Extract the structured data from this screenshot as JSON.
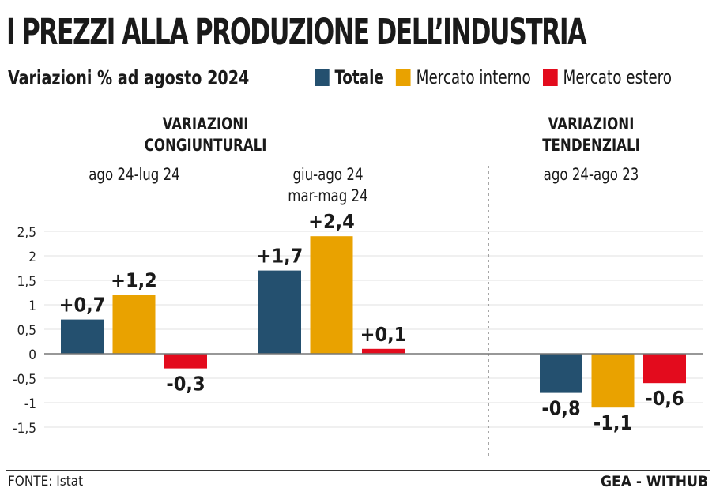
{
  "title": "I PREZZI ALLA PRODUZIONE DELL’INDUSTRIA",
  "subtitle": "Variazioni % ad agosto 2024",
  "source": "FONTE: Istat",
  "brand": "GEA - WITHUB",
  "colors": {
    "totale": "#24506f",
    "interno": "#e9a200",
    "estero": "#e30b1d"
  },
  "sections": {
    "congiunturali": {
      "line1": "VARIAZIONI",
      "line2": "CONGIUNTURALI"
    },
    "tendenziali": {
      "line1": "VARIAZIONI",
      "line2": "TENDENZIALI"
    }
  },
  "chart_data": {
    "type": "bar",
    "categories": [
      "ago 24-lug 24",
      "giu-ago 24 mar-mag 24",
      "ago 24-ago 23"
    ],
    "category_lines": [
      [
        "ago 24-lug 24"
      ],
      [
        "giu-ago 24",
        "mar-mag 24"
      ],
      [
        "ago 24-ago 23"
      ]
    ],
    "series": [
      {
        "name": "Totale",
        "values": [
          0.7,
          1.7,
          -0.8
        ],
        "labels": [
          "+0,7",
          "+1,7",
          "-0,8"
        ]
      },
      {
        "name": "Mercato interno",
        "values": [
          1.2,
          2.4,
          -1.1
        ],
        "labels": [
          "+1,2",
          "+2,4",
          "-1,1"
        ]
      },
      {
        "name": "Mercato estero",
        "values": [
          -0.3,
          0.1,
          -0.6
        ],
        "labels": [
          "-0,3",
          "+0,1",
          "-0,6"
        ]
      }
    ],
    "yticks": [
      "2,5",
      "2",
      "1,5",
      "1",
      "0,5",
      "0",
      "-0,5",
      "-1",
      "-1,5"
    ],
    "ytick_values": [
      2.5,
      2,
      1.5,
      1,
      0.5,
      0,
      -0.5,
      -1,
      -1.5
    ],
    "ylim": [
      -1.5,
      2.5
    ],
    "grid": true,
    "legend": "top-right"
  }
}
